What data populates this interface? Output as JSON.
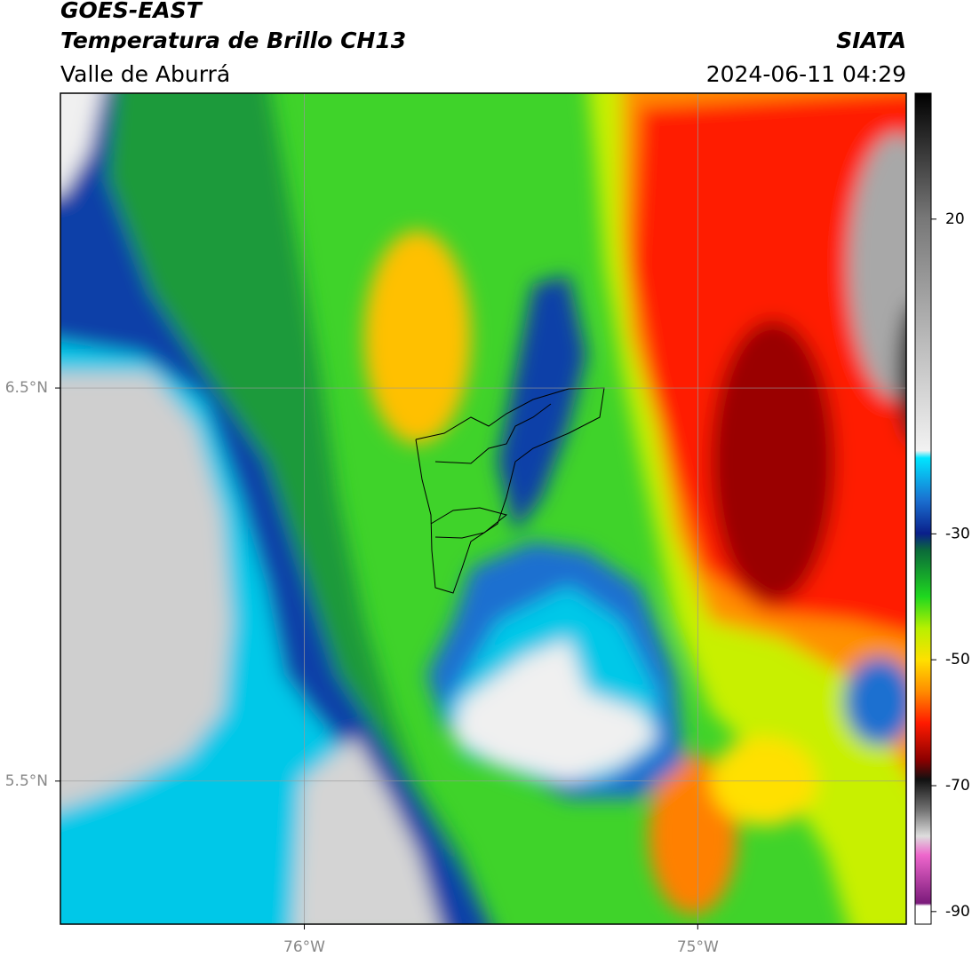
{
  "header": {
    "title": "GOES-EAST",
    "subtitle": "Temperatura de Brillo CH13",
    "region": "Valle de Aburrá",
    "source": "SIATA",
    "datetime": "2024-06-11 04:29"
  },
  "map": {
    "xlim": [
      -76.62,
      -74.47
    ],
    "ylim": [
      5.136,
      7.25
    ],
    "xticks": [
      {
        "value": -76,
        "label": "76°W"
      },
      {
        "value": -75,
        "label": "75°W"
      }
    ],
    "yticks": [
      {
        "value": 6.5,
        "label": "6.5°N"
      },
      {
        "value": 5.5,
        "label": "5.5°N"
      }
    ],
    "grid": true
  },
  "colorbar": {
    "lim": [
      -92,
      40
    ],
    "ticks": [
      20,
      -30,
      -50,
      -70,
      -90
    ]
  }
}
